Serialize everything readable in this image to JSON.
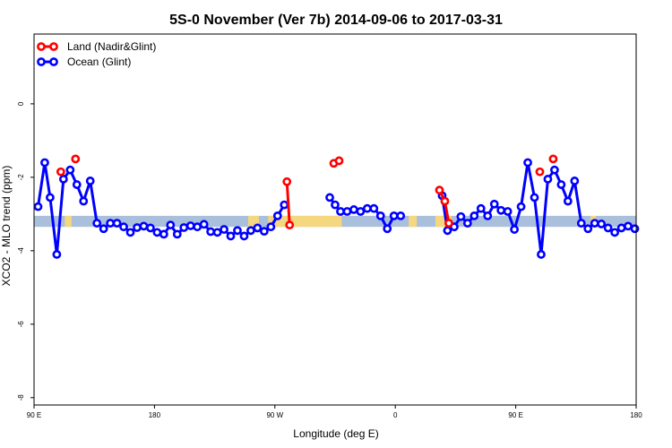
{
  "chart_data": {
    "type": "line",
    "title": "5S-0 November (Ver 7b)   2014-09-06 to 2017-03-31",
    "xlabel": "Longitude (deg E)",
    "ylabel": "XCO2 - MLO trend (ppm)",
    "xlim": [
      90,
      540
    ],
    "ylim": [
      -8.2,
      1.9
    ],
    "xticks": [
      {
        "value": 90,
        "label": "90 E"
      },
      {
        "value": 180,
        "label": "180"
      },
      {
        "value": 270,
        "label": "90 W"
      },
      {
        "value": 360,
        "label": "0"
      },
      {
        "value": 450,
        "label": "90 E"
      },
      {
        "value": 540,
        "label": "180"
      }
    ],
    "yticks": [
      {
        "value": 0,
        "label": "0"
      },
      {
        "value": -2,
        "label": "-2"
      },
      {
        "value": -4,
        "label": "-4"
      },
      {
        "value": -6,
        "label": "-6"
      },
      {
        "value": -8,
        "label": "-8"
      }
    ],
    "band": {
      "y_min": -3.35,
      "y_max": -3.05,
      "color": "#a9bfdc",
      "land_color": "#f5d77f",
      "land_segments": [
        [
          113,
          118
        ],
        [
          250,
          258
        ],
        [
          265,
          320
        ],
        [
          370,
          376
        ],
        [
          390,
          402
        ],
        [
          506,
          510
        ]
      ]
    },
    "legend": {
      "placement": "top-left",
      "entries": [
        "Land (Nadir&Glint)",
        "Ocean (Glint)"
      ]
    },
    "series": [
      {
        "name": "Ocean (Glint)",
        "color": "#0000ff",
        "segments": [
          [
            [
              93,
              -2.8
            ],
            [
              98,
              -1.6
            ],
            [
              102,
              -2.55
            ],
            [
              107,
              -4.1
            ],
            [
              112,
              -2.05
            ],
            [
              117,
              -1.8
            ],
            [
              122,
              -2.2
            ],
            [
              127,
              -2.65
            ],
            [
              132,
              -2.1
            ],
            [
              137,
              -3.25
            ],
            [
              142,
              -3.4
            ],
            [
              147,
              -3.25
            ],
            [
              152,
              -3.25
            ],
            [
              157,
              -3.35
            ],
            [
              162,
              -3.5
            ],
            [
              167,
              -3.37
            ],
            [
              172,
              -3.33
            ],
            [
              177,
              -3.38
            ],
            [
              182,
              -3.5
            ],
            [
              187,
              -3.55
            ],
            [
              192,
              -3.3
            ],
            [
              197,
              -3.55
            ],
            [
              202,
              -3.37
            ],
            [
              207,
              -3.32
            ],
            [
              212,
              -3.35
            ],
            [
              217,
              -3.28
            ],
            [
              222,
              -3.48
            ],
            [
              227,
              -3.5
            ],
            [
              232,
              -3.42
            ],
            [
              237,
              -3.6
            ],
            [
              242,
              -3.45
            ],
            [
              247,
              -3.6
            ],
            [
              252,
              -3.45
            ],
            [
              257,
              -3.38
            ],
            [
              262,
              -3.47
            ],
            [
              267,
              -3.35
            ],
            [
              272,
              -3.05
            ],
            [
              277,
              -2.75
            ]
          ],
          [
            [
              311,
              -2.55
            ],
            [
              315,
              -2.75
            ],
            [
              319,
              -2.93
            ],
            [
              324,
              -2.93
            ],
            [
              329,
              -2.88
            ],
            [
              334,
              -2.93
            ],
            [
              339,
              -2.85
            ],
            [
              344,
              -2.85
            ],
            [
              349,
              -3.05
            ],
            [
              354,
              -3.4
            ],
            [
              359,
              -3.05
            ],
            [
              364,
              -3.05
            ]
          ],
          [
            [
              395,
              -2.5
            ],
            [
              399,
              -3.45
            ],
            [
              404,
              -3.35
            ],
            [
              409,
              -3.07
            ],
            [
              414,
              -3.25
            ],
            [
              419,
              -3.05
            ],
            [
              424,
              -2.85
            ],
            [
              429,
              -3.05
            ],
            [
              434,
              -2.73
            ],
            [
              439,
              -2.9
            ],
            [
              444,
              -2.93
            ],
            [
              449,
              -3.42
            ],
            [
              454,
              -2.8
            ],
            [
              459,
              -1.6
            ],
            [
              464,
              -2.55
            ],
            [
              469,
              -4.1
            ],
            [
              474,
              -2.05
            ],
            [
              479,
              -1.8
            ],
            [
              484,
              -2.2
            ],
            [
              489,
              -2.65
            ],
            [
              494,
              -2.1
            ],
            [
              499,
              -3.25
            ],
            [
              504,
              -3.4
            ],
            [
              509,
              -3.25
            ],
            [
              514,
              -3.27
            ],
            [
              519,
              -3.38
            ],
            [
              524,
              -3.5
            ],
            [
              529,
              -3.38
            ],
            [
              534,
              -3.33
            ],
            [
              539,
              -3.4
            ]
          ]
        ]
      },
      {
        "name": "Land (Nadir&Glint)",
        "color": "#ff0000",
        "segments": [
          [
            [
              110,
              -1.85
            ]
          ],
          [
            [
              121,
              -1.5
            ]
          ],
          [
            [
              279,
              -2.12
            ],
            [
              281,
              -3.3
            ]
          ],
          [
            [
              314,
              -1.62
            ],
            [
              318,
              -1.55
            ]
          ],
          [
            [
              393,
              -2.35
            ],
            [
              397,
              -2.65
            ],
            [
              400,
              -3.25
            ]
          ],
          [
            [
              468,
              -1.85
            ]
          ],
          [
            [
              478,
              -1.5
            ]
          ]
        ]
      }
    ]
  }
}
